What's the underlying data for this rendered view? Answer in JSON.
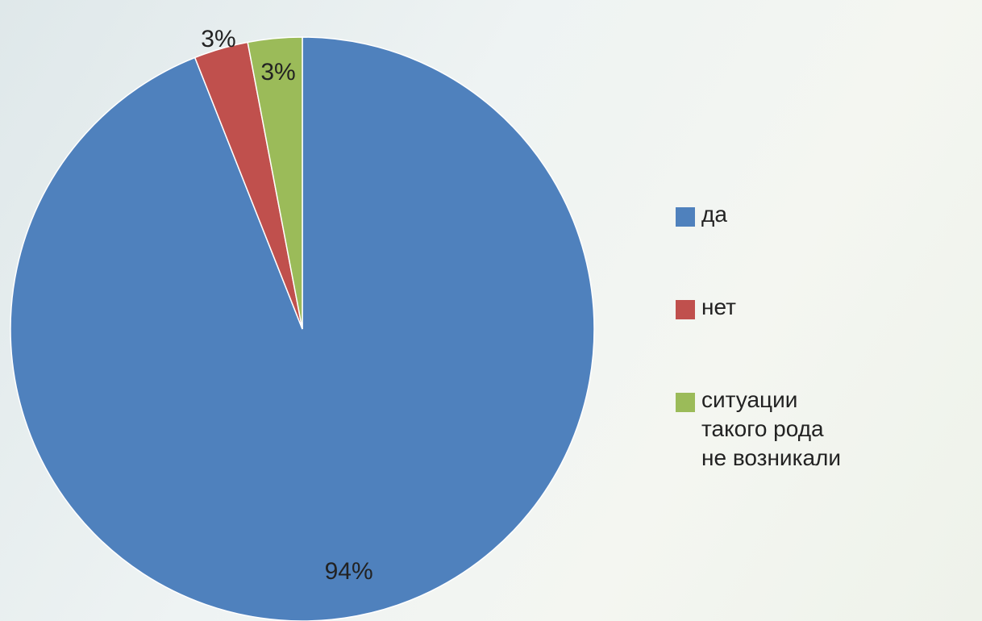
{
  "chart_data": {
    "type": "pie",
    "categories": [
      "да",
      "нет",
      "ситуации такого рода не возникали"
    ],
    "values": [
      94,
      3,
      3
    ],
    "value_labels": [
      "94%",
      "3%",
      "3%"
    ],
    "colors": [
      "#4f81bd",
      "#c0504d",
      "#9bbb59"
    ],
    "legend": "right"
  }
}
